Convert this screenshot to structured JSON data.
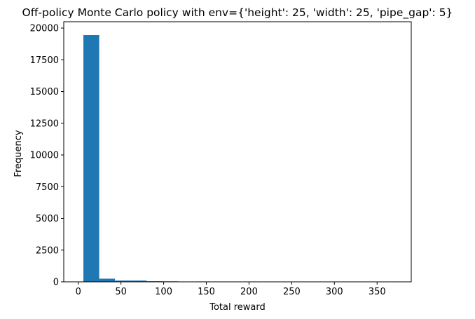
{
  "chart_data": {
    "type": "bar",
    "title": "Off-policy Monte Carlo policy with env={'height': 25, 'width': 25, 'pipe_gap': 5}",
    "xlabel": "Total reward",
    "ylabel": "Frequency",
    "xlim": [
      -17,
      390
    ],
    "ylim": [
      0,
      20500
    ],
    "xticks": [
      0,
      50,
      100,
      150,
      200,
      250,
      300,
      350
    ],
    "yticks": [
      0,
      2500,
      5000,
      7500,
      10000,
      12500,
      15000,
      17500,
      20000
    ],
    "grid": false,
    "bar_color": "#1f77b4",
    "bins": [
      {
        "x0": 6,
        "x1": 24.5,
        "value": 19450
      },
      {
        "x0": 24.5,
        "x1": 43,
        "value": 250
      },
      {
        "x0": 43,
        "x1": 61.5,
        "value": 100
      },
      {
        "x0": 61.5,
        "x1": 80,
        "value": 100
      },
      {
        "x0": 80,
        "x1": 98.5,
        "value": 50
      },
      {
        "x0": 98.5,
        "x1": 117,
        "value": 40
      },
      {
        "x0": 117,
        "x1": 135.5,
        "value": 10
      },
      {
        "x0": 135.5,
        "x1": 154,
        "value": 30
      },
      {
        "x0": 154,
        "x1": 172.5,
        "value": 5
      },
      {
        "x0": 172.5,
        "x1": 191,
        "value": 5
      },
      {
        "x0": 191,
        "x1": 209.5,
        "value": 3
      },
      {
        "x0": 209.5,
        "x1": 228,
        "value": 3
      },
      {
        "x0": 228,
        "x1": 246.5,
        "value": 2
      },
      {
        "x0": 246.5,
        "x1": 265,
        "value": 2
      },
      {
        "x0": 265,
        "x1": 283.5,
        "value": 2
      },
      {
        "x0": 283.5,
        "x1": 302,
        "value": 2
      },
      {
        "x0": 302,
        "x1": 320.5,
        "value": 1
      },
      {
        "x0": 320.5,
        "x1": 339,
        "value": 1
      },
      {
        "x0": 339,
        "x1": 357.5,
        "value": 1
      },
      {
        "x0": 357.5,
        "x1": 376,
        "value": 1
      }
    ]
  }
}
